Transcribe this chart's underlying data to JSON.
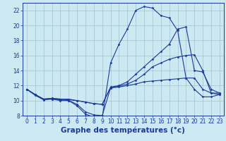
{
  "title": "",
  "xlabel": "Graphe des températures (°c)",
  "background_color": "#cce8f0",
  "grid_color": "#99bbcc",
  "line_color": "#1a3a9e",
  "x_hours": [
    0,
    1,
    2,
    3,
    4,
    5,
    6,
    7,
    8,
    9,
    10,
    11,
    12,
    13,
    14,
    15,
    16,
    17,
    18,
    19,
    20,
    21,
    22,
    23
  ],
  "series": [
    [
      11.5,
      10.8,
      10.2,
      10.2,
      10.1,
      10.0,
      9.5,
      8.5,
      8.1,
      8.0,
      11.7,
      11.8,
      12.0,
      12.2,
      12.5,
      12.6,
      12.7,
      12.8,
      12.9,
      13.0,
      13.0,
      11.5,
      11.0,
      11.0
    ],
    [
      11.5,
      10.8,
      10.2,
      10.3,
      10.2,
      10.1,
      10.0,
      9.8,
      9.6,
      9.5,
      11.7,
      11.9,
      12.2,
      12.7,
      13.5,
      14.5,
      15.0,
      15.5,
      15.8,
      16.0,
      16.1,
      14.0,
      11.0,
      10.8
    ],
    [
      11.5,
      10.8,
      10.2,
      10.3,
      10.2,
      10.2,
      10.0,
      9.8,
      9.6,
      9.5,
      11.8,
      12.0,
      12.5,
      13.5,
      14.5,
      15.5,
      16.5,
      17.5,
      19.5,
      19.8,
      14.0,
      13.8,
      11.5,
      11.0
    ],
    [
      11.5,
      10.7,
      10.1,
      10.2,
      10.0,
      10.0,
      9.3,
      8.2,
      7.8,
      7.7,
      15.0,
      17.5,
      19.5,
      22.0,
      22.5,
      22.3,
      21.3,
      21.0,
      19.3,
      13.0,
      11.5,
      10.5,
      10.5,
      10.8
    ]
  ],
  "ylim": [
    8,
    23
  ],
  "yticks": [
    8,
    10,
    12,
    14,
    16,
    18,
    20,
    22
  ],
  "xlim": [
    -0.5,
    23.5
  ],
  "xticks": [
    0,
    1,
    2,
    3,
    4,
    5,
    6,
    7,
    8,
    9,
    10,
    11,
    12,
    13,
    14,
    15,
    16,
    17,
    18,
    19,
    20,
    21,
    22,
    23
  ],
  "tick_fontsize": 5.5,
  "xlabel_fontsize": 7.5,
  "marker": "D",
  "marker_size": 1.5,
  "line_width": 0.8
}
